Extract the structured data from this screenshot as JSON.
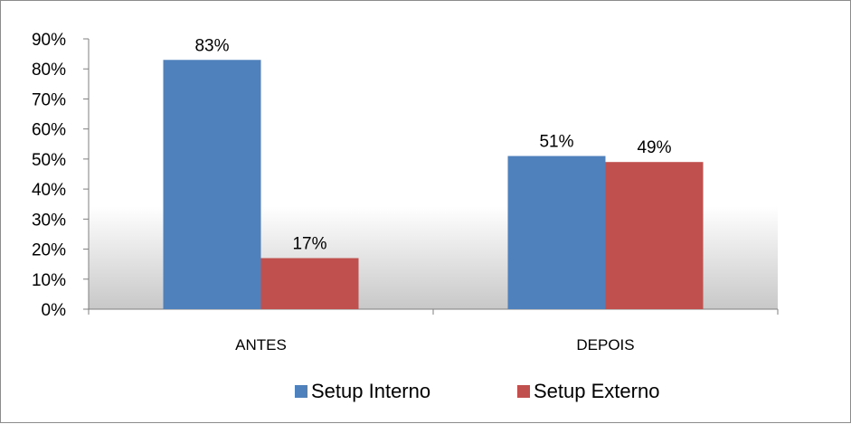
{
  "chart_data": {
    "type": "bar",
    "categories": [
      "ANTES",
      "DEPOIS"
    ],
    "series": [
      {
        "name": "Setup Interno",
        "values": [
          83,
          51
        ],
        "color": "#4f81bd"
      },
      {
        "name": "Setup Externo",
        "values": [
          17,
          49
        ],
        "color": "#c0504d"
      }
    ],
    "data_labels": [
      [
        "83%",
        "51%"
      ],
      [
        "17%",
        "49%"
      ]
    ],
    "y_ticks": [
      "0%",
      "10%",
      "20%",
      "30%",
      "40%",
      "50%",
      "60%",
      "70%",
      "80%",
      "90%"
    ],
    "ylim": [
      0,
      90
    ],
    "legend_position": "bottom",
    "grid": false,
    "title": "",
    "xlabel": "",
    "ylabel": ""
  }
}
